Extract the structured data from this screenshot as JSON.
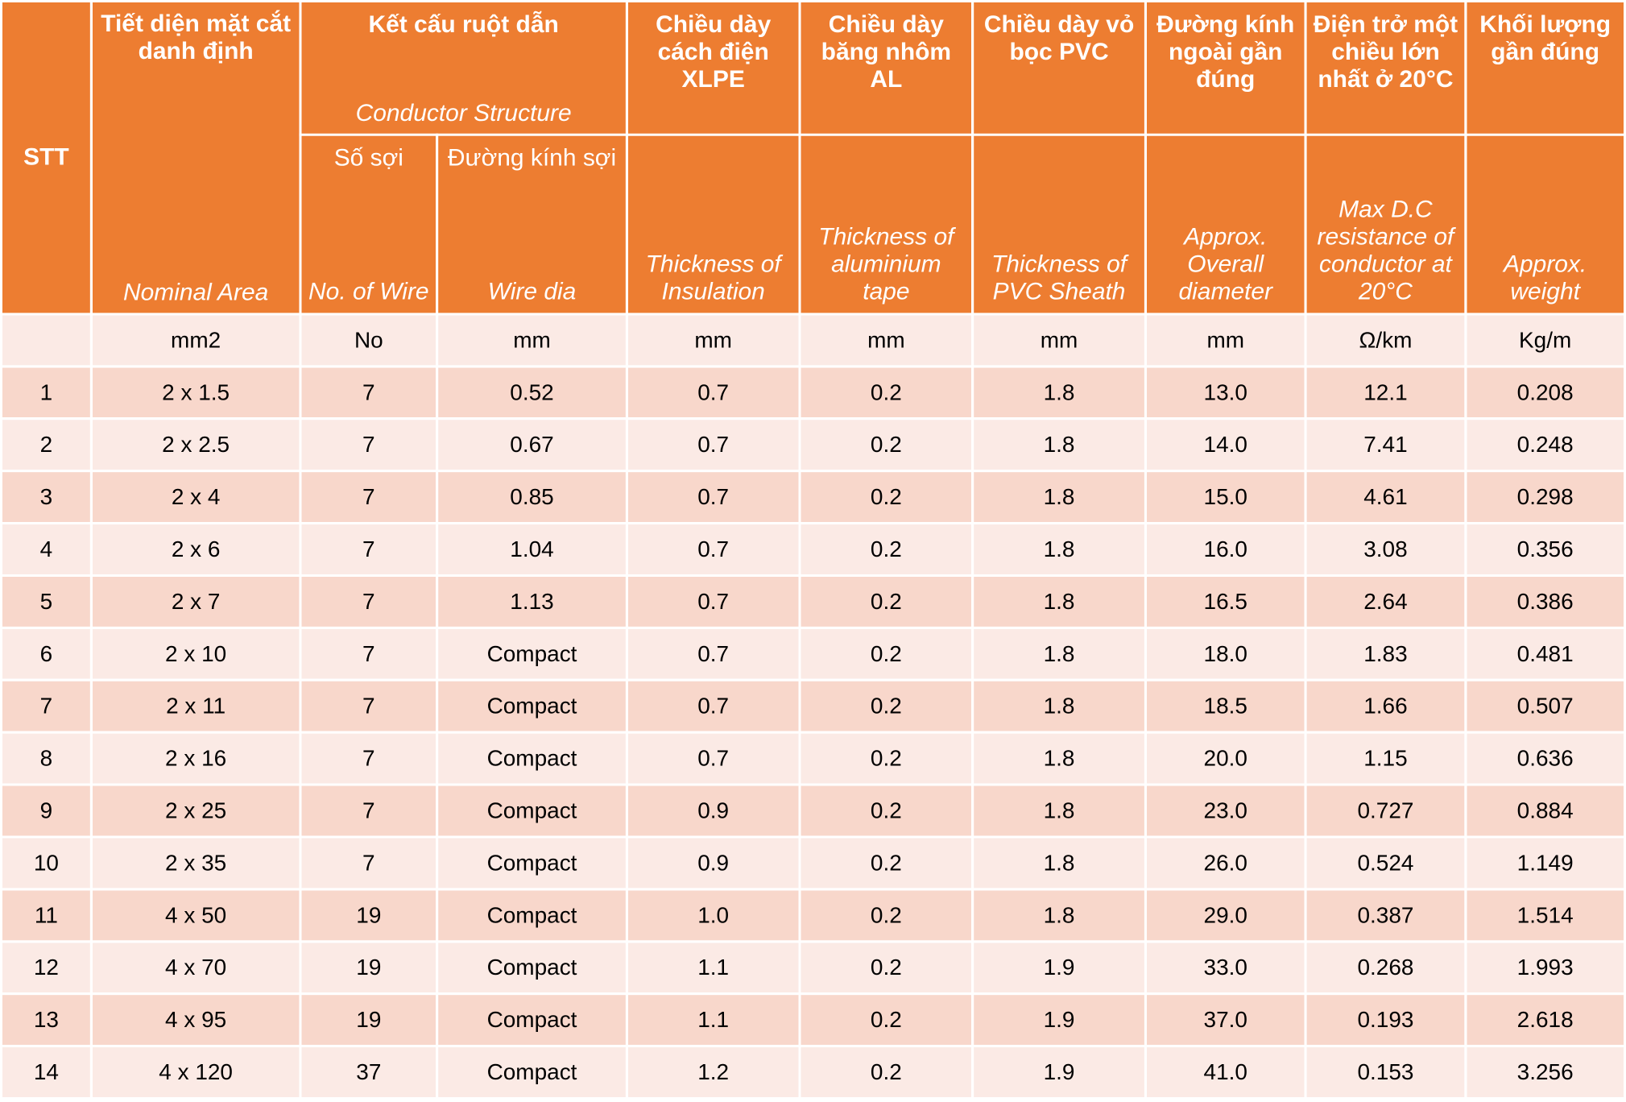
{
  "headers": {
    "stt": "STT",
    "area": {
      "vi": "Tiết diện mặt cắt danh định",
      "en": "Nominal Area"
    },
    "conductor": {
      "vi": "Kết cấu ruột dẫn",
      "en": "Conductor Structure"
    },
    "wires": {
      "vi": "Số sợi",
      "en": "No. of Wire"
    },
    "wire_dia": {
      "vi": "Đường kính sợi",
      "en": "Wire dia"
    },
    "insulation": {
      "vi": "Chiều dày cách điện XLPE",
      "en": "Thickness of Insulation"
    },
    "al_tape": {
      "vi": "Chiều dày băng nhôm AL",
      "en": "Thickness of aluminium tape"
    },
    "sheath": {
      "vi": "Chiều dày vỏ bọc PVC",
      "en": "Thickness of PVC Sheath"
    },
    "diameter": {
      "vi": "Đường kính ngoài gần đúng",
      "en": "Approx. Overall diameter"
    },
    "resistance": {
      "vi": "Điện trở một chiều lớn nhất ở 20°C",
      "en": "Max D.C resistance of conductor at 20°C"
    },
    "weight": {
      "vi": "Khối lượng gần đúng",
      "en": "Approx. weight"
    }
  },
  "units": [
    "",
    "mm2",
    "No",
    "mm",
    "mm",
    "mm",
    "mm",
    "mm",
    "Ω/km",
    "Kg/m"
  ],
  "rows": [
    [
      "1",
      "2 x 1.5",
      "7",
      "0.52",
      "0.7",
      "0.2",
      "1.8",
      "13.0",
      "12.1",
      "0.208"
    ],
    [
      "2",
      "2 x 2.5",
      "7",
      "0.67",
      "0.7",
      "0.2",
      "1.8",
      "14.0",
      "7.41",
      "0.248"
    ],
    [
      "3",
      "2 x 4",
      "7",
      "0.85",
      "0.7",
      "0.2",
      "1.8",
      "15.0",
      "4.61",
      "0.298"
    ],
    [
      "4",
      "2 x 6",
      "7",
      "1.04",
      "0.7",
      "0.2",
      "1.8",
      "16.0",
      "3.08",
      "0.356"
    ],
    [
      "5",
      "2 x 7",
      "7",
      "1.13",
      "0.7",
      "0.2",
      "1.8",
      "16.5",
      "2.64",
      "0.386"
    ],
    [
      "6",
      "2 x 10",
      "7",
      "Compact",
      "0.7",
      "0.2",
      "1.8",
      "18.0",
      "1.83",
      "0.481"
    ],
    [
      "7",
      "2 x 11",
      "7",
      "Compact",
      "0.7",
      "0.2",
      "1.8",
      "18.5",
      "1.66",
      "0.507"
    ],
    [
      "8",
      "2 x 16",
      "7",
      "Compact",
      "0.7",
      "0.2",
      "1.8",
      "20.0",
      "1.15",
      "0.636"
    ],
    [
      "9",
      "2 x 25",
      "7",
      "Compact",
      "0.9",
      "0.2",
      "1.8",
      "23.0",
      "0.727",
      "0.884"
    ],
    [
      "10",
      "2 x 35",
      "7",
      "Compact",
      "0.9",
      "0.2",
      "1.8",
      "26.0",
      "0.524",
      "1.149"
    ],
    [
      "11",
      "4 x 50",
      "19",
      "Compact",
      "1.0",
      "0.2",
      "1.8",
      "29.0",
      "0.387",
      "1.514"
    ],
    [
      "12",
      "4 x 70",
      "19",
      "Compact",
      "1.1",
      "0.2",
      "1.9",
      "33.0",
      "0.268",
      "1.993"
    ],
    [
      "13",
      "4 x 95",
      "19",
      "Compact",
      "1.1",
      "0.2",
      "1.9",
      "37.0",
      "0.193",
      "2.618"
    ],
    [
      "14",
      "4 x 120",
      "37",
      "Compact",
      "1.2",
      "0.2",
      "1.9",
      "41.0",
      "0.153",
      "3.256"
    ]
  ],
  "colors": {
    "header": "#ED7D31",
    "row_dark": "#F8D7CB",
    "row_light": "#FBEAE5"
  }
}
